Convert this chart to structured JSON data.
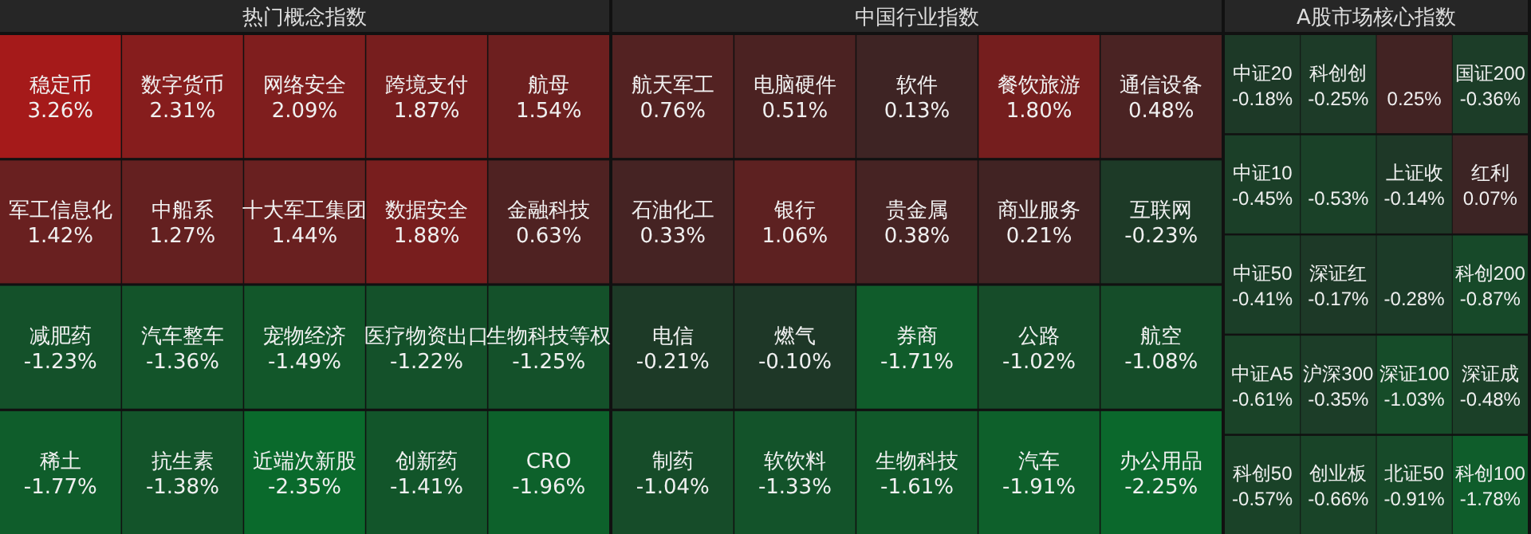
{
  "chart_data": [
    {
      "type": "other",
      "title": "热门概念指数",
      "categories": [
        "稳定币",
        "数字货币",
        "网络安全",
        "跨境支付",
        "航母",
        "军工信息化",
        "中船系",
        "十大军工集团",
        "数据安全",
        "金融科技",
        "减肥药",
        "汽车整车",
        "宠物经济",
        "医疗物资出口",
        "生物科技等权",
        "稀土",
        "抗生素",
        "近端次新股",
        "创新药",
        "CRO"
      ],
      "values": [
        3.26,
        2.31,
        2.09,
        1.87,
        1.54,
        1.42,
        1.27,
        1.44,
        1.88,
        0.63,
        -1.23,
        -1.36,
        -1.49,
        -1.22,
        -1.25,
        -1.77,
        -1.38,
        -2.35,
        -1.41,
        -1.96
      ],
      "value_labels": [
        "3.26%",
        "2.31%",
        "2.09%",
        "1.87%",
        "1.54%",
        "1.42%",
        "1.27%",
        "1.44%",
        "1.88%",
        "0.63%",
        "-1.23%",
        "-1.36%",
        "-1.49%",
        "-1.22%",
        "-1.25%",
        "-1.77%",
        "-1.38%",
        "-2.35%",
        "-1.41%",
        "-1.96%"
      ]
    },
    {
      "type": "other",
      "title": "中国行业指数",
      "categories": [
        "航天军工",
        "电脑硬件",
        "软件",
        "餐饮旅游",
        "通信设备",
        "石油化工",
        "银行",
        "贵金属",
        "商业服务",
        "互联网",
        "电信",
        "燃气",
        "券商",
        "公路",
        "航空",
        "制药",
        "软饮料",
        "生物科技",
        "汽车",
        "办公用品"
      ],
      "values": [
        0.76,
        0.51,
        0.13,
        1.8,
        0.48,
        0.33,
        1.06,
        0.38,
        0.21,
        -0.23,
        -0.21,
        -0.1,
        -1.71,
        -1.02,
        -1.08,
        -1.04,
        -1.33,
        -1.61,
        -1.91,
        -2.25
      ],
      "value_labels": [
        "0.76%",
        "0.51%",
        "0.13%",
        "1.80%",
        "0.48%",
        "0.33%",
        "1.06%",
        "0.38%",
        "0.21%",
        "-0.23%",
        "-0.21%",
        "-0.10%",
        "-1.71%",
        "-1.02%",
        "-1.08%",
        "-1.04%",
        "-1.33%",
        "-1.61%",
        "-1.91%",
        "-2.25%"
      ]
    },
    {
      "type": "other",
      "title": "A股市场核心指数",
      "categories": [
        "中证20",
        "科创创",
        null,
        "国证200",
        "中证10",
        null,
        "上证收",
        "红利",
        "中证50",
        "深证红",
        null,
        "科创200",
        "中证A5",
        "沪深300",
        "深证100",
        "深证成",
        "科创50",
        "创业板",
        "北证50",
        "科创100"
      ],
      "values": [
        -0.18,
        -0.25,
        0.25,
        -0.36,
        -0.45,
        -0.53,
        -0.14,
        0.07,
        -0.41,
        -0.17,
        -0.28,
        -0.87,
        -0.61,
        -0.35,
        -1.03,
        -0.48,
        -0.57,
        -0.66,
        -0.91,
        -1.78
      ],
      "value_labels": [
        "-0.18%",
        "-0.25%",
        "0.25%",
        "-0.36%",
        "-0.45%",
        "-0.53%",
        "-0.14%",
        "0.07%",
        "-0.41%",
        "-0.17%",
        "-0.28%",
        "-0.87%",
        "-0.61%",
        "-0.35%",
        "-1.03%",
        "-0.48%",
        "-0.57%",
        "-0.66%",
        "-0.91%",
        "-1.78%"
      ]
    }
  ]
}
